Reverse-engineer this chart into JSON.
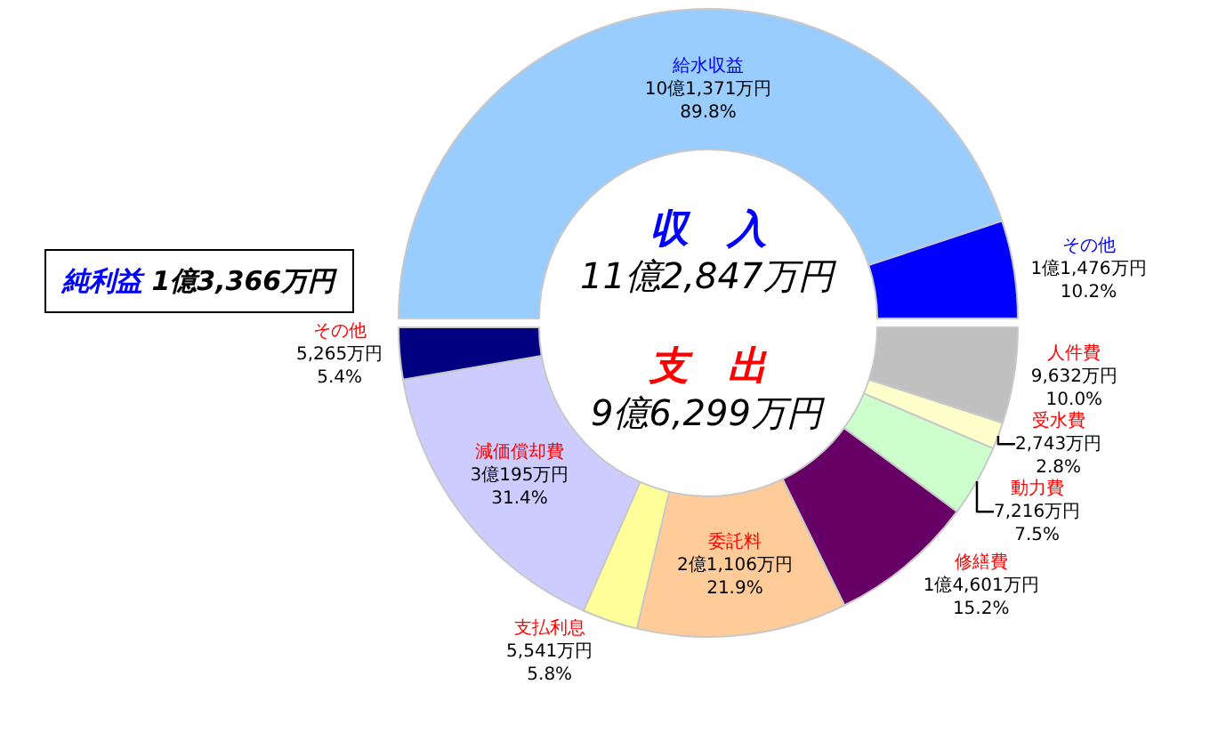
{
  "chart_data": [
    {
      "type": "donut",
      "title": "収　入",
      "subtitle": "11億2,847万円",
      "categories": [
        "給水収益",
        "その他"
      ],
      "values": [
        89.8,
        10.2
      ],
      "colors": [
        "#99ccff",
        "#0000ff"
      ],
      "value_labels": [
        "10億1,371万円\n89.8%",
        "1億1,476万円\n10.2%"
      ]
    },
    {
      "type": "donut",
      "title": "支　出",
      "subtitle": "9億6,299万円",
      "categories": [
        "人件費",
        "受水費",
        "動力費",
        "修繕費",
        "委託料",
        "支払利息",
        "減価償却費",
        "その他"
      ],
      "values": [
        10.0,
        2.8,
        7.5,
        15.2,
        21.9,
        5.8,
        31.4,
        5.4
      ],
      "colors": [
        "#c0c0c0",
        "#ffffcc",
        "#ccffcc",
        "#660066",
        "#ffcc99",
        "#ffff99",
        "#ccccff",
        "#000080"
      ],
      "value_labels": [
        "9,632万円\n10.0%",
        "2,743万円\n2.8%",
        "7,216万円\n7.5%",
        "1億4,601万円\n15.2%",
        "2億1,106万円\n21.9%",
        "5,541万円\n5.8%",
        "3億195万円\n31.4%",
        "5,265万円\n5.4%"
      ],
      "annotations": [
        "純利益 1億3,366万円"
      ]
    }
  ]
}
